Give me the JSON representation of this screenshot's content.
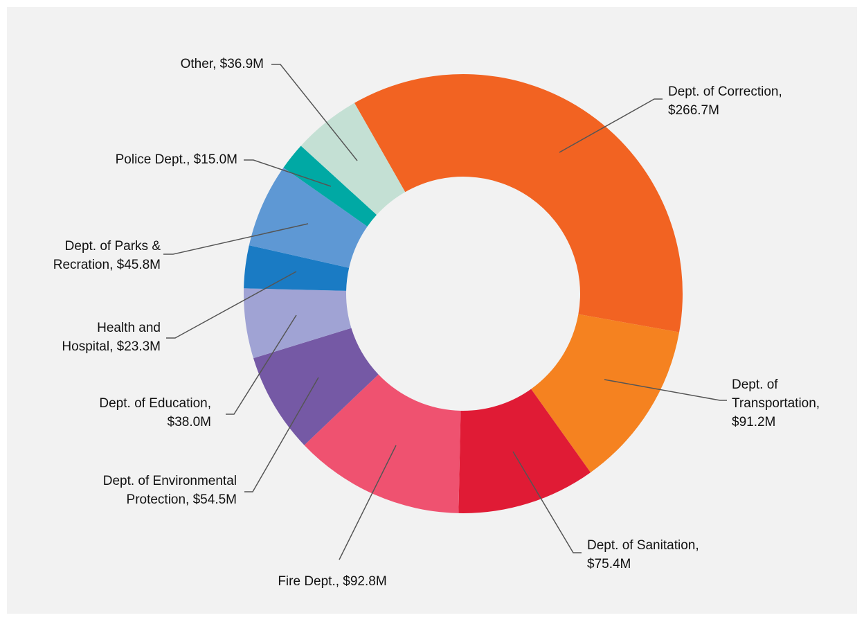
{
  "chart_data": {
    "type": "donut",
    "categories": [
      "Dept. of Correction",
      "Dept. of Transportation",
      "Dept. of Sanitation",
      "Fire Dept.",
      "Dept. of Environmental Protection",
      "Dept. of Education",
      "Health and Hospital",
      "Dept. of Parks & Recration",
      "Police Dept.",
      "Other"
    ],
    "values": [
      266.7,
      91.2,
      75.4,
      92.8,
      54.5,
      38.0,
      23.3,
      45.8,
      15.0,
      36.9
    ],
    "labels": [
      [
        "Dept. of Correction,",
        "$266.7M"
      ],
      [
        "Dept. of",
        "Transportation,",
        "$91.2M"
      ],
      [
        "Dept. of Sanitation,",
        "$75.4M"
      ],
      [
        "Fire Dept.,  $92.8M"
      ],
      [
        "Dept. of Environmental",
        "Protection,  $54.5M"
      ],
      [
        "Dept. of Education,",
        "$38.0M"
      ],
      [
        "Health and",
        "Hospital,  $23.3M"
      ],
      [
        "Dept. of Parks &",
        "Recration,  $45.8M"
      ],
      [
        "Police Dept.,  $15.0M"
      ],
      [
        "Other,  $36.9M"
      ]
    ],
    "colors": [
      "#f26322",
      "#f58220",
      "#e01b35",
      "#ef5270",
      "#7559a5",
      "#a0a3d4",
      "#1a7bc4",
      "#5e98d4",
      "#00a9a4",
      "#c4e0d4"
    ]
  }
}
